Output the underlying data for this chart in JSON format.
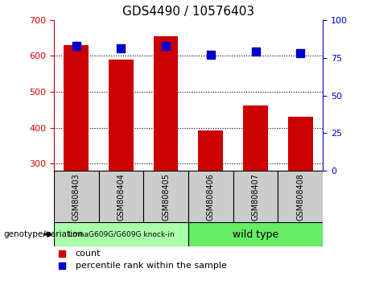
{
  "title": "GDS4490 / 10576403",
  "samples": [
    "GSM808403",
    "GSM808404",
    "GSM808405",
    "GSM808406",
    "GSM808407",
    "GSM808408"
  ],
  "counts": [
    630,
    590,
    655,
    392,
    462,
    430
  ],
  "percentile_ranks": [
    83,
    81,
    83,
    77,
    79,
    78
  ],
  "ylim_left": [
    280,
    700
  ],
  "ylim_right": [
    0,
    100
  ],
  "yticks_left": [
    300,
    400,
    500,
    600,
    700
  ],
  "yticks_right": [
    0,
    25,
    50,
    75,
    100
  ],
  "bar_color": "#cc0000",
  "dot_color": "#0000cc",
  "bar_bottom": 280,
  "group1_label": "LmnaG609G/G609G knock-in",
  "group2_label": "wild type",
  "group1_indices": [
    0,
    1,
    2
  ],
  "group2_indices": [
    3,
    4,
    5
  ],
  "group1_color": "#aaffaa",
  "group2_color": "#66ee66",
  "sample_box_color": "#cccccc",
  "legend_count_label": "count",
  "legend_percentile_label": "percentile rank within the sample",
  "genotype_label": "genotype/variation",
  "title_fontsize": 11,
  "tick_fontsize": 8,
  "dot_size": 50,
  "bar_width": 0.55
}
